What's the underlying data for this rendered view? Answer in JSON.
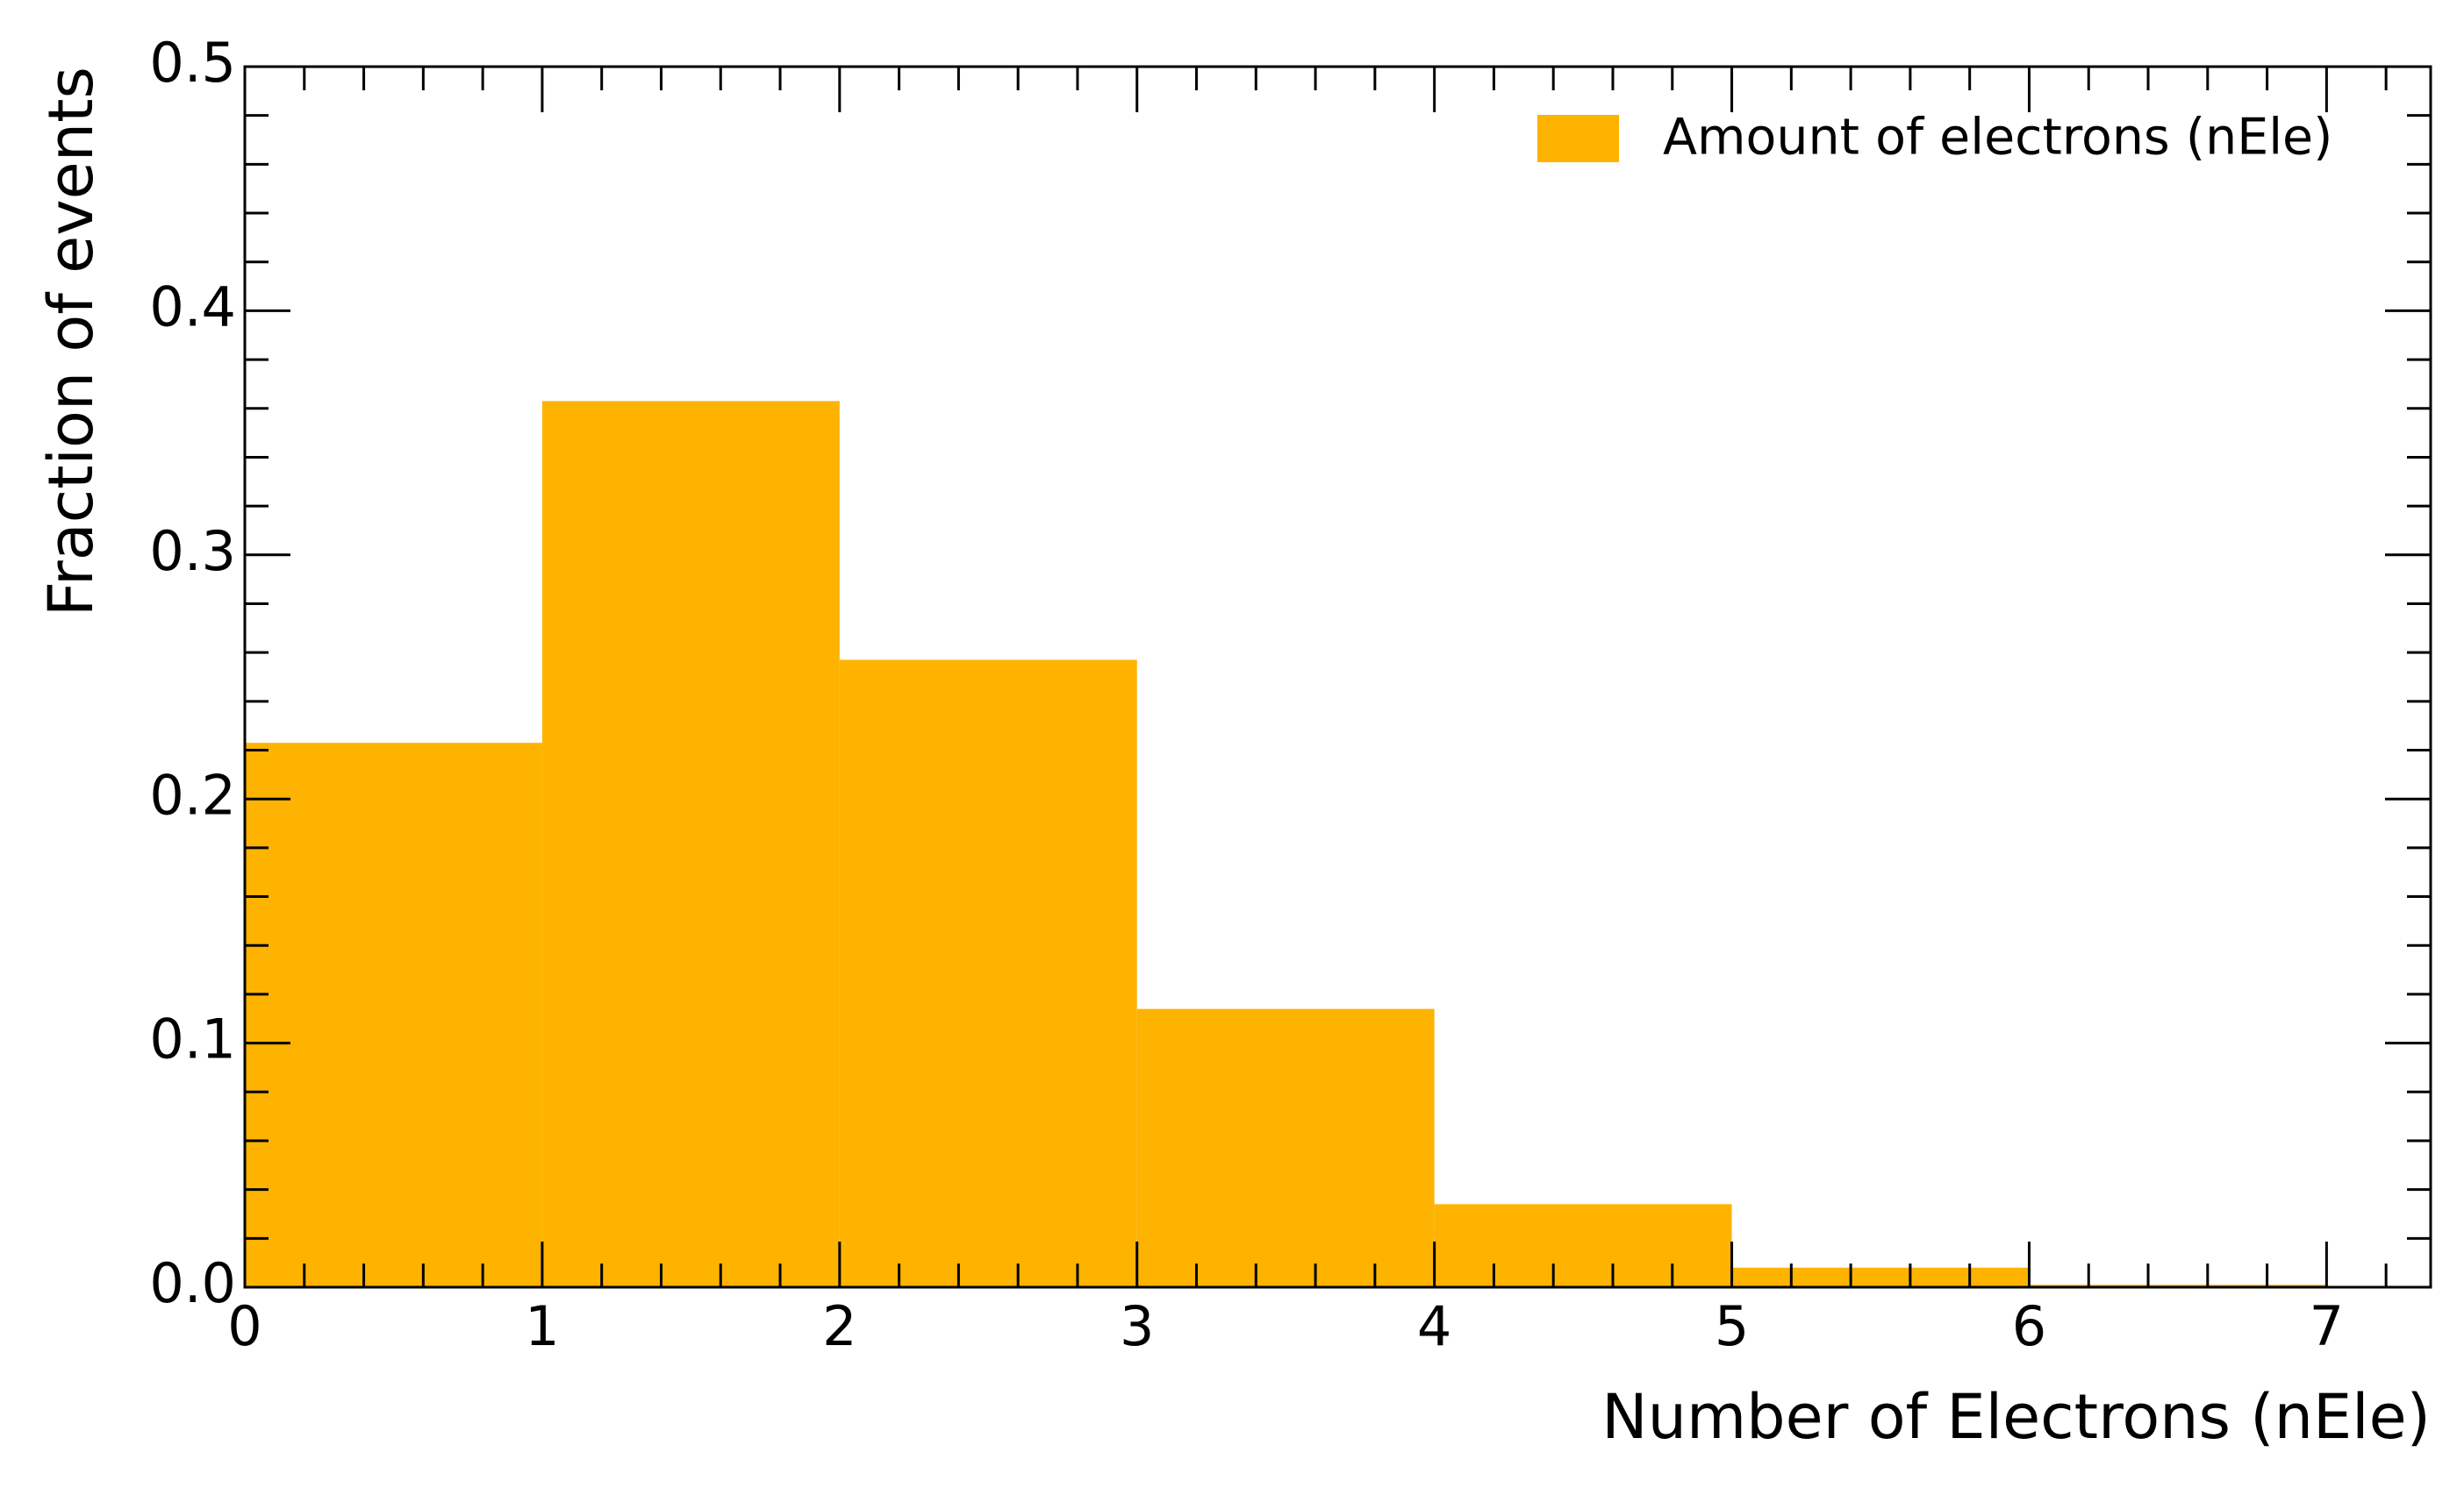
{
  "chart_data": {
    "type": "bar",
    "x_edges": [
      0,
      1,
      2,
      3,
      4,
      5,
      6,
      7
    ],
    "series": [
      {
        "name": "Amount of electrons (nEle)",
        "values": [
          0.223,
          0.363,
          0.257,
          0.114,
          0.034,
          0.008,
          0.001
        ],
        "color": "#fdb300"
      }
    ],
    "title": "",
    "xlabel": "Number of Electrons (nEle)",
    "ylabel": "Fraction of events",
    "xlim": [
      0,
      7.35
    ],
    "ylim": [
      0,
      0.5
    ],
    "x_ticks": [
      "0",
      "1",
      "2",
      "3",
      "4",
      "5",
      "6",
      "7"
    ],
    "y_ticks": [
      "0.0",
      "0.1",
      "0.2",
      "0.3",
      "0.4",
      "0.5"
    ],
    "legend": "top-right",
    "grid": false
  }
}
